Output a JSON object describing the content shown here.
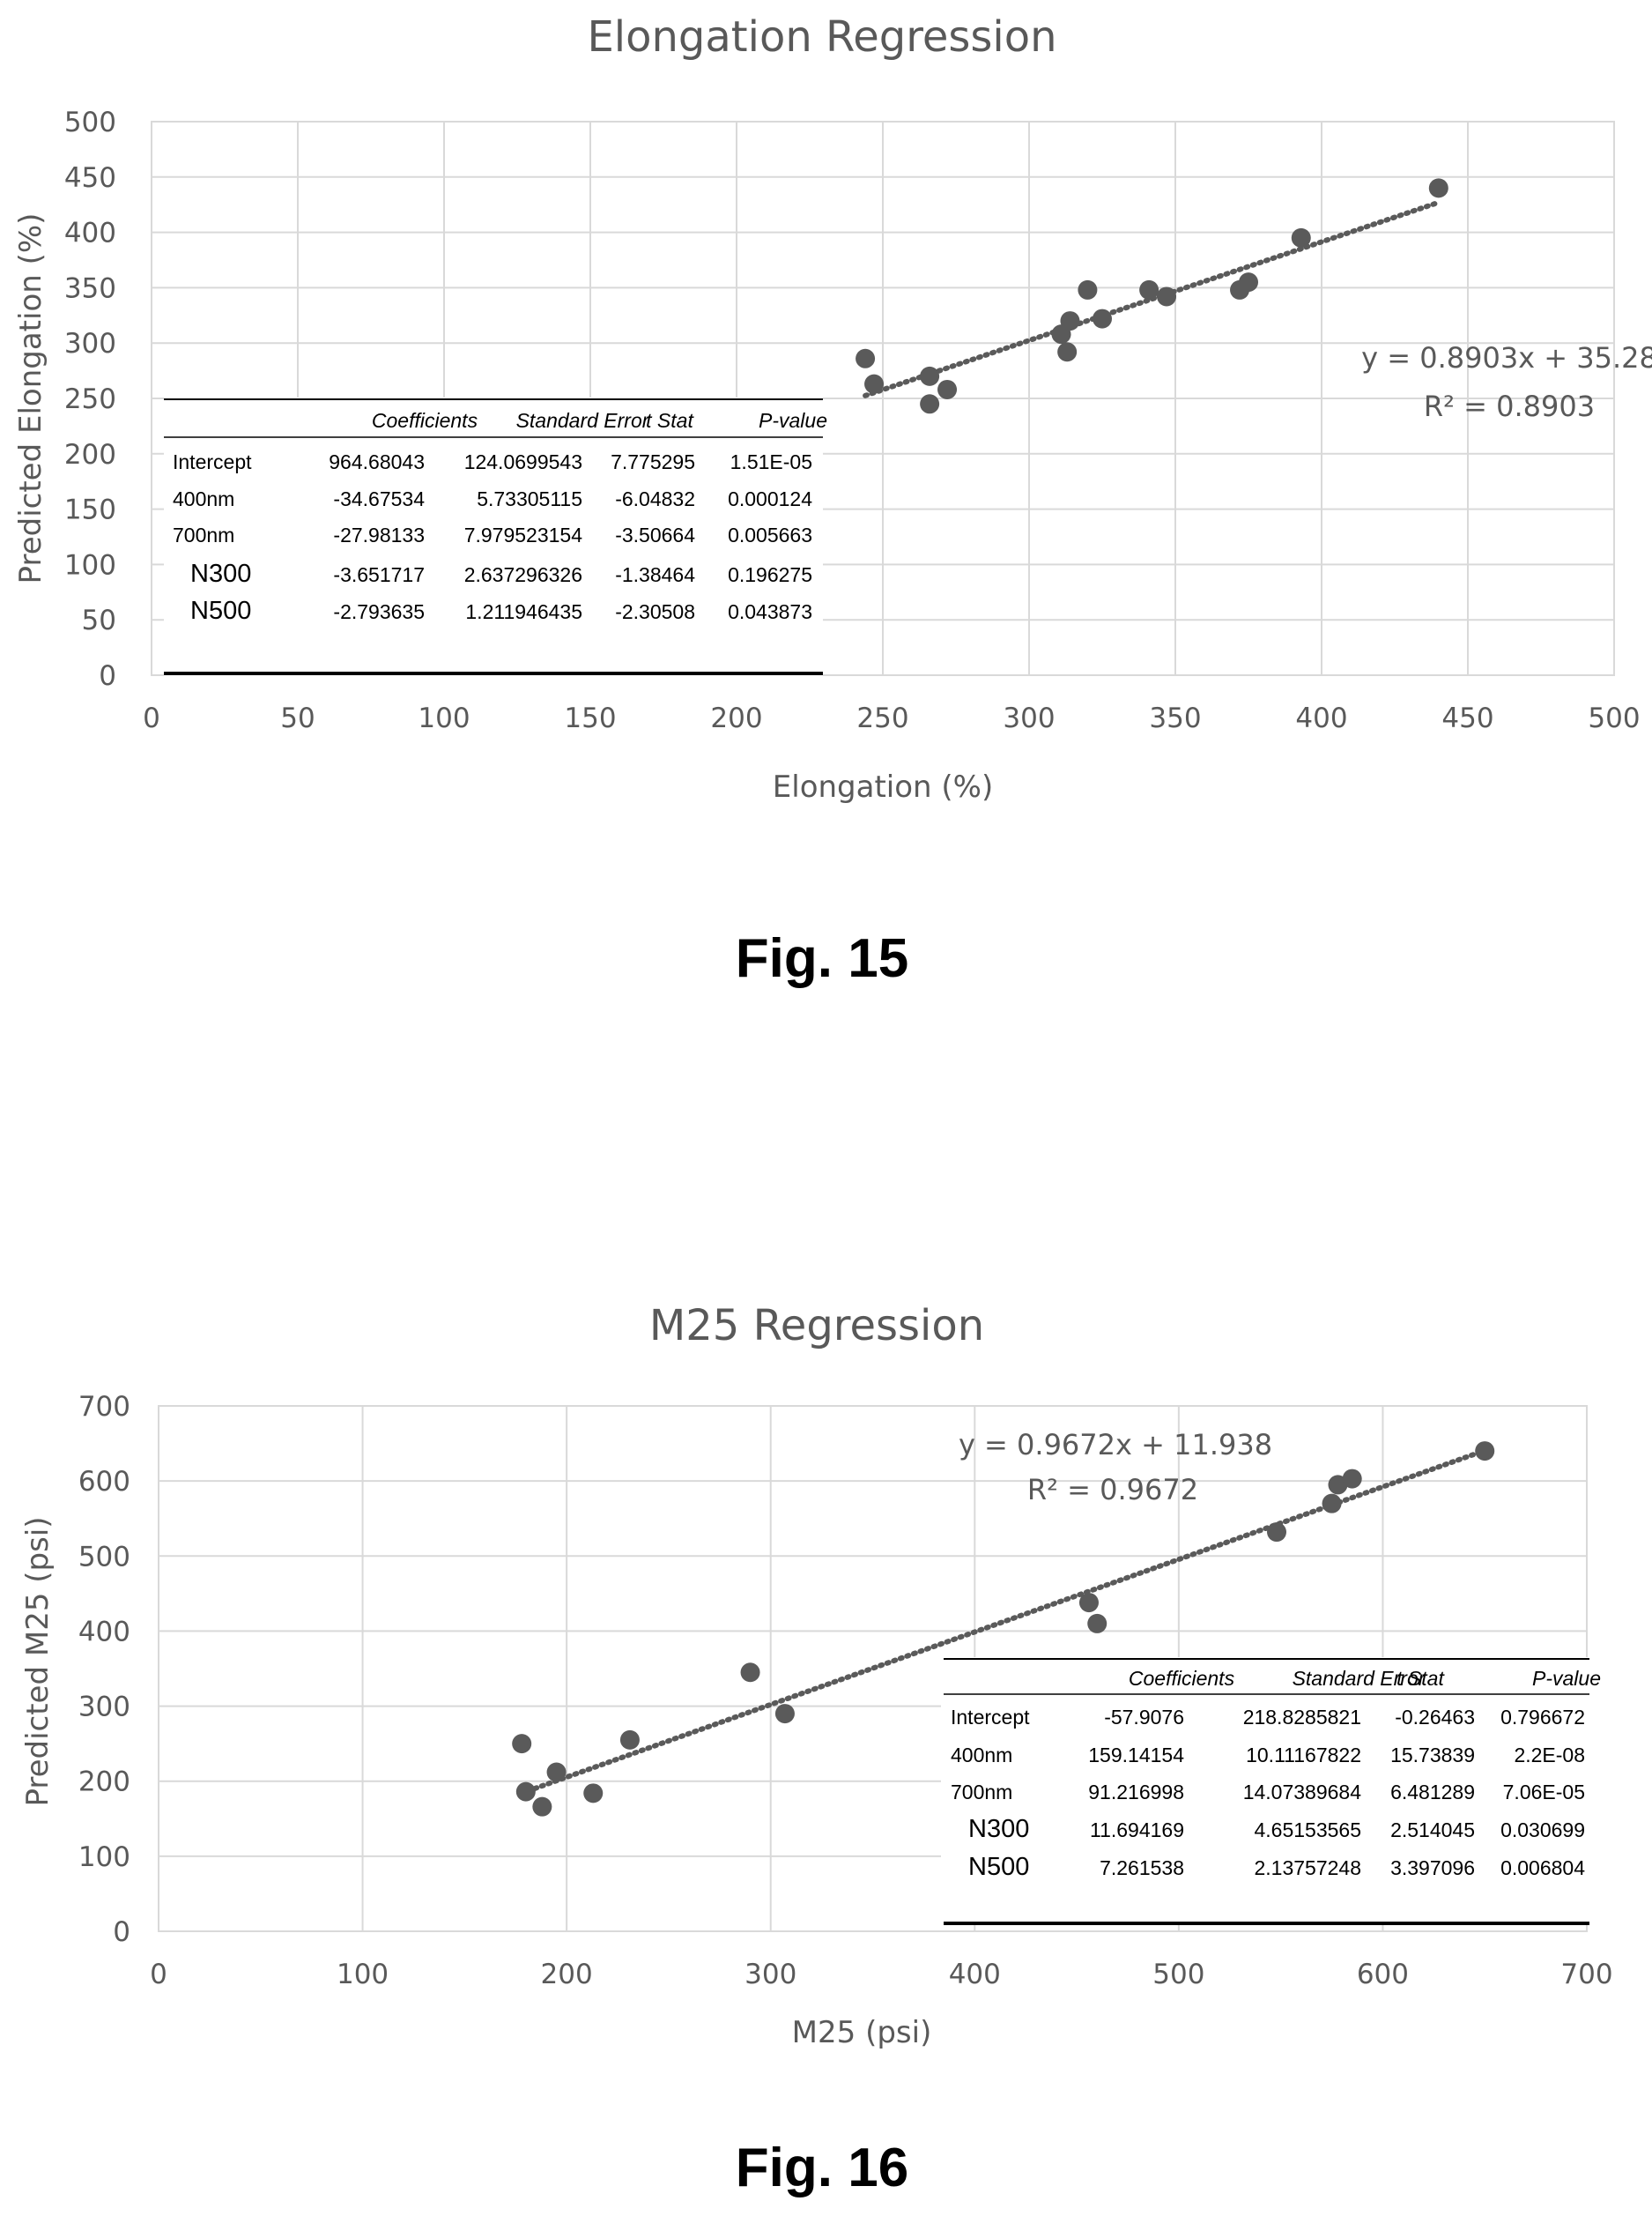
{
  "chart_data": [
    {
      "type": "scatter",
      "title": "Elongation Regression",
      "xlabel": "Elongation (%)",
      "ylabel": "Predicted Elongation (%)",
      "xlim": [
        0,
        500
      ],
      "ylim": [
        0,
        500
      ],
      "x_ticks": [
        "0",
        "50",
        "100",
        "150",
        "200",
        "250",
        "300",
        "350",
        "400",
        "450",
        "500"
      ],
      "y_ticks": [
        "0",
        "50",
        "100",
        "150",
        "200",
        "250",
        "300",
        "350",
        "400",
        "450",
        "500"
      ],
      "grid": true,
      "marker_color": "#5a5a5a",
      "points": [
        [
          244,
          286
        ],
        [
          247,
          263
        ],
        [
          266,
          270
        ],
        [
          266,
          245
        ],
        [
          272,
          258
        ],
        [
          311,
          308
        ],
        [
          313,
          292
        ],
        [
          314,
          320
        ],
        [
          320,
          348
        ],
        [
          325,
          322
        ],
        [
          341,
          348
        ],
        [
          347,
          342
        ],
        [
          372,
          348
        ],
        [
          375,
          355
        ],
        [
          393,
          395
        ],
        [
          440,
          440
        ]
      ],
      "trendline": {
        "slope": 0.8903,
        "intercept": 35.28,
        "x_range": [
          244,
          440
        ]
      },
      "equation": "y = 0.8903x + 35.28",
      "r_squared": "R² = 0.8903",
      "table": {
        "headers": [
          "",
          "Coefficients",
          "Standard Error",
          "t Stat",
          "P-value"
        ],
        "rows": [
          [
            "Intercept",
            "964.68043",
            "124.0699543",
            "7.775295",
            "1.51E-05"
          ],
          [
            "400nm",
            "-34.67534",
            "5.73305115",
            "-6.04832",
            "0.000124"
          ],
          [
            "700nm",
            "-27.98133",
            "7.979523154",
            "-3.50664",
            "0.005663"
          ],
          [
            "N300",
            "-3.651717",
            "2.637296326",
            "-1.38464",
            "0.196275"
          ],
          [
            "N500",
            "-2.793635",
            "1.211946435",
            "-2.30508",
            "0.043873"
          ]
        ]
      },
      "figure_label": "Fig. 15"
    },
    {
      "type": "scatter",
      "title": "M25 Regression",
      "xlabel": "M25 (psi)",
      "ylabel": "Predicted M25 (psi)",
      "xlim": [
        0,
        700
      ],
      "ylim": [
        0,
        700
      ],
      "x_ticks": [
        "0",
        "100",
        "200",
        "300",
        "400",
        "500",
        "600",
        "700"
      ],
      "y_ticks": [
        "0",
        "100",
        "200",
        "300",
        "400",
        "500",
        "600",
        "700"
      ],
      "grid": true,
      "marker_color": "#5a5a5a",
      "points": [
        [
          178,
          250
        ],
        [
          180,
          186
        ],
        [
          188,
          166
        ],
        [
          195,
          212
        ],
        [
          213,
          184
        ],
        [
          231,
          255
        ],
        [
          290,
          345
        ],
        [
          307,
          290
        ],
        [
          456,
          438
        ],
        [
          460,
          410
        ],
        [
          548,
          532
        ],
        [
          575,
          570
        ],
        [
          578,
          595
        ],
        [
          585,
          603
        ],
        [
          650,
          640
        ]
      ],
      "trendline": {
        "slope": 0.9672,
        "intercept": 11.938,
        "x_range": [
          178,
          650
        ]
      },
      "equation": "y = 0.9672x + 11.938",
      "r_squared": "R² = 0.9672",
      "table": {
        "headers": [
          "",
          "Coefficients",
          "Standard Error",
          "t Stat",
          "P-value"
        ],
        "rows": [
          [
            "Intercept",
            "-57.9076",
            "218.8285821",
            "-0.26463",
            "0.796672"
          ],
          [
            "400nm",
            "159.14154",
            "10.11167822",
            "15.73839",
            "2.2E-08"
          ],
          [
            "700nm",
            "91.216998",
            "14.07389684",
            "6.481289",
            "7.06E-05"
          ],
          [
            "N300",
            "11.694169",
            "4.65153565",
            "2.514045",
            "0.030699"
          ],
          [
            "N500",
            "7.261538",
            "2.13757248",
            "3.397096",
            "0.006804"
          ]
        ]
      },
      "figure_label": "Fig. 16"
    }
  ]
}
